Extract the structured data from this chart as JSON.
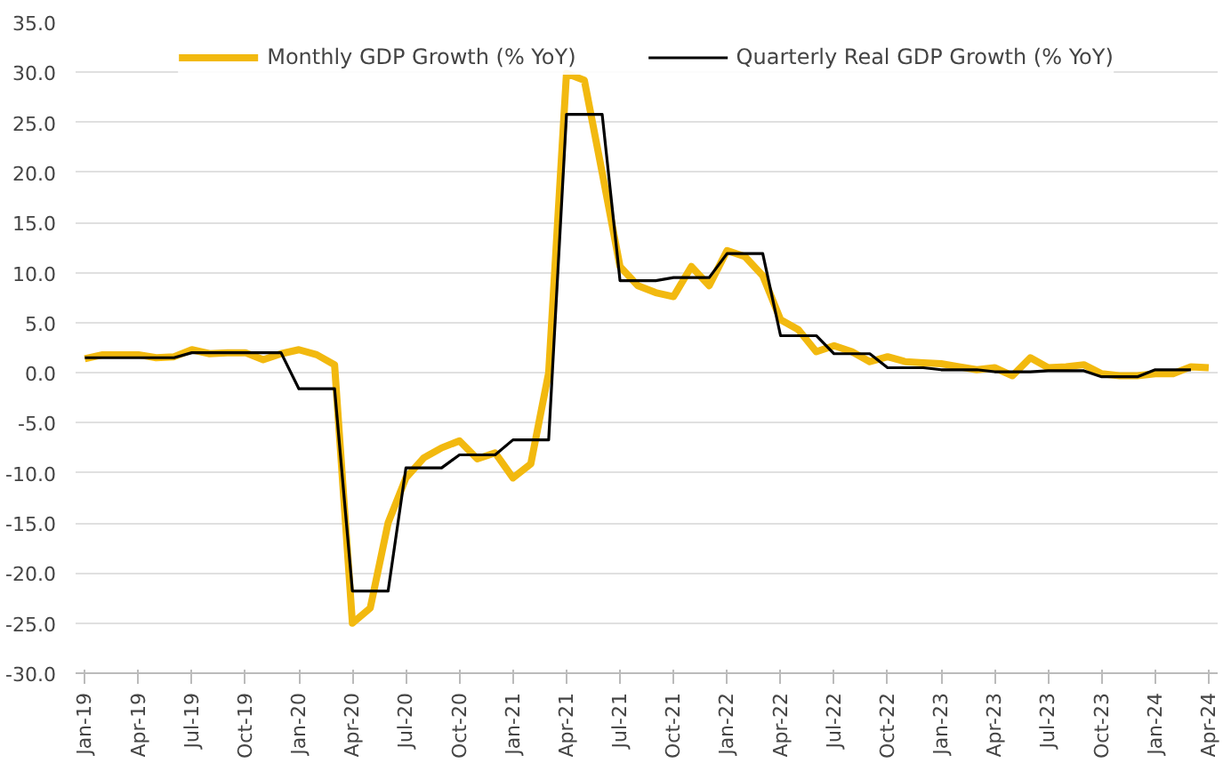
{
  "chart_data": {
    "type": "line",
    "x": [
      "2019-01",
      "2019-02",
      "2019-03",
      "2019-04",
      "2019-05",
      "2019-06",
      "2019-07",
      "2019-08",
      "2019-09",
      "2019-10",
      "2019-11",
      "2019-12",
      "2020-01",
      "2020-02",
      "2020-03",
      "2020-04",
      "2020-05",
      "2020-06",
      "2020-07",
      "2020-08",
      "2020-09",
      "2020-10",
      "2020-11",
      "2020-12",
      "2021-01",
      "2021-02",
      "2021-03",
      "2021-04",
      "2021-05",
      "2021-06",
      "2021-07",
      "2021-08",
      "2021-09",
      "2021-10",
      "2021-11",
      "2021-12",
      "2022-01",
      "2022-02",
      "2022-03",
      "2022-04",
      "2022-05",
      "2022-06",
      "2022-07",
      "2022-08",
      "2022-09",
      "2022-10",
      "2022-11",
      "2022-12",
      "2023-01",
      "2023-02",
      "2023-03",
      "2023-04",
      "2023-05",
      "2023-06",
      "2023-07",
      "2023-08",
      "2023-09",
      "2023-10",
      "2023-11",
      "2023-12",
      "2024-01",
      "2024-02",
      "2024-03",
      "2024-04"
    ],
    "series": [
      {
        "name": "Monthly GDP Growth (% YoY)",
        "color": "#f2b90f",
        "values": [
          1.4,
          1.8,
          1.8,
          1.8,
          1.5,
          1.6,
          2.3,
          1.9,
          2.0,
          2.0,
          1.3,
          1.9,
          2.3,
          1.8,
          0.8,
          -25.0,
          -23.5,
          -15.0,
          -10.5,
          -8.5,
          -7.5,
          -6.8,
          -8.6,
          -8.0,
          -10.5,
          -9.1,
          0.0,
          29.9,
          29.2,
          20.0,
          10.6,
          8.7,
          8.0,
          7.6,
          10.6,
          8.7,
          12.2,
          11.6,
          9.7,
          5.3,
          4.3,
          2.1,
          2.7,
          2.1,
          1.1,
          1.6,
          1.1,
          1.0,
          0.9,
          0.6,
          0.3,
          0.5,
          -0.3,
          1.5,
          0.5,
          0.6,
          0.8,
          -0.1,
          -0.3,
          -0.3,
          -0.1,
          -0.1,
          0.6,
          0.5
        ]
      },
      {
        "name": "Quarterly Real GDP Growth (% YoY)",
        "color": "#000000",
        "values": [
          1.5,
          1.5,
          1.5,
          1.5,
          1.5,
          1.5,
          2.0,
          2.0,
          2.0,
          2.0,
          2.0,
          2.0,
          -1.6,
          -1.6,
          -1.6,
          -21.8,
          -21.8,
          -21.8,
          -9.5,
          -9.5,
          -9.5,
          -8.2,
          -8.2,
          -8.2,
          -6.7,
          -6.7,
          -6.7,
          25.8,
          25.8,
          25.8,
          9.2,
          9.2,
          9.2,
          9.5,
          9.5,
          9.5,
          11.9,
          11.9,
          11.9,
          3.7,
          3.7,
          3.7,
          1.9,
          1.9,
          1.9,
          0.5,
          0.5,
          0.5,
          0.3,
          0.3,
          0.3,
          0.1,
          0.1,
          0.1,
          0.2,
          0.2,
          0.2,
          -0.4,
          -0.4,
          -0.4,
          0.3,
          0.3,
          0.3,
          null
        ]
      }
    ],
    "xlim": [
      "2018-12-16",
      "2024-04-16"
    ],
    "xticks": [
      {
        "value": "2019-01",
        "label": "Jan-19"
      },
      {
        "value": "2019-04",
        "label": "Apr-19"
      },
      {
        "value": "2019-07",
        "label": "Jul-19"
      },
      {
        "value": "2019-10",
        "label": "Oct-19"
      },
      {
        "value": "2020-01",
        "label": "Jan-20"
      },
      {
        "value": "2020-04",
        "label": "Apr-20"
      },
      {
        "value": "2020-07",
        "label": "Jul-20"
      },
      {
        "value": "2020-10",
        "label": "Oct-20"
      },
      {
        "value": "2021-01",
        "label": "Jan-21"
      },
      {
        "value": "2021-04",
        "label": "Apr-21"
      },
      {
        "value": "2021-07",
        "label": "Jul-21"
      },
      {
        "value": "2021-10",
        "label": "Oct-21"
      },
      {
        "value": "2022-01",
        "label": "Jan-22"
      },
      {
        "value": "2022-04",
        "label": "Apr-22"
      },
      {
        "value": "2022-07",
        "label": "Jul-22"
      },
      {
        "value": "2022-10",
        "label": "Oct-22"
      },
      {
        "value": "2023-01",
        "label": "Jan-23"
      },
      {
        "value": "2023-04",
        "label": "Apr-23"
      },
      {
        "value": "2023-07",
        "label": "Jul-23"
      },
      {
        "value": "2023-10",
        "label": "Oct-23"
      },
      {
        "value": "2024-01",
        "label": "Jan-24"
      },
      {
        "value": "2024-04",
        "label": "Apr-24"
      }
    ],
    "ylim": [
      -30,
      35
    ],
    "yticks": [
      {
        "value": -30,
        "label": "-30.0"
      },
      {
        "value": -25,
        "label": "-25.0"
      },
      {
        "value": -20,
        "label": "-20.0"
      },
      {
        "value": -15,
        "label": "-15.0"
      },
      {
        "value": -10,
        "label": "-10.0"
      },
      {
        "value": -5,
        "label": "-5.0"
      },
      {
        "value": 0,
        "label": "0.0"
      },
      {
        "value": 5,
        "label": "5.0"
      },
      {
        "value": 10,
        "label": "10.0"
      },
      {
        "value": 15,
        "label": "15.0"
      },
      {
        "value": 20,
        "label": "20.0"
      },
      {
        "value": 25,
        "label": "25.0"
      },
      {
        "value": 30,
        "label": "30.0"
      },
      {
        "value": 35,
        "label": "35.0"
      }
    ],
    "grid": "y",
    "legend": "top",
    "marker": "none",
    "line_style": "solid"
  }
}
